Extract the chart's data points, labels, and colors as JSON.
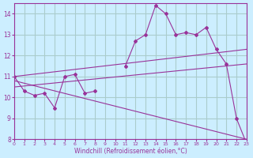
{
  "xlabel": "Windchill (Refroidissement éolien,°C)",
  "ylabel": "",
  "background_color": "#cceeff",
  "line_color": "#993399",
  "grid_color": "#aacccc",
  "xlim": [
    0,
    23
  ],
  "ylim": [
    8,
    14.5
  ],
  "yticks": [
    8,
    9,
    10,
    11,
    12,
    13,
    14
  ],
  "xticks": [
    0,
    1,
    2,
    3,
    4,
    5,
    6,
    7,
    8,
    9,
    10,
    11,
    12,
    13,
    14,
    15,
    16,
    17,
    18,
    19,
    20,
    21,
    22,
    23
  ],
  "series": {
    "main_curve": {
      "x": [
        0,
        1,
        2,
        3,
        4,
        5,
        6,
        7,
        8,
        9,
        10,
        11,
        12,
        13,
        14,
        15,
        16,
        17,
        18,
        19,
        20,
        21,
        22,
        23
      ],
      "y": [
        11.0,
        10.3,
        10.1,
        10.2,
        9.5,
        11.0,
        11.1,
        10.2,
        10.3,
        null,
        null,
        11.5,
        12.7,
        13.0,
        14.4,
        14.0,
        13.0,
        13.1,
        13.0,
        13.35,
        12.3,
        11.6,
        9.0,
        7.8
      ]
    },
    "trend1": {
      "x": [
        0,
        23
      ],
      "y": [
        11.0,
        12.3
      ]
    },
    "trend2": {
      "x": [
        0,
        23
      ],
      "y": [
        10.5,
        11.6
      ]
    },
    "trend3": {
      "x": [
        0,
        23
      ],
      "y": [
        10.8,
        8.0
      ]
    }
  }
}
